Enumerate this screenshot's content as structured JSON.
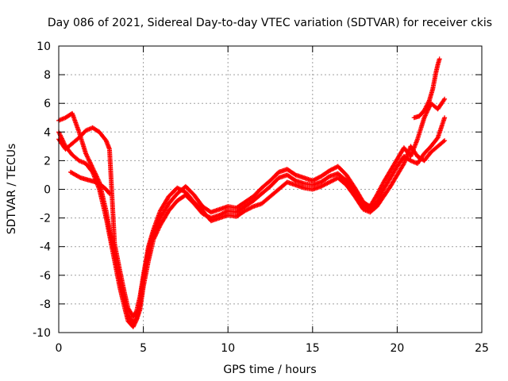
{
  "chart_data": {
    "type": "scatter",
    "title": "Day 086 of 2021, Sidereal Day-to-day VTEC variation (SDTVAR) for receiver ckis",
    "xlabel": "GPS time / hours",
    "ylabel": "SDTVAR / TECUs",
    "xlim": [
      0,
      25
    ],
    "ylim": [
      -10,
      10
    ],
    "xticks": [
      "0",
      "5",
      "10",
      "15",
      "20",
      "25"
    ],
    "yticks": [
      "-10",
      "-8",
      "-6",
      "-4",
      "-2",
      "0",
      "2",
      "4",
      "6",
      "8",
      "10"
    ],
    "grid": true,
    "marker": "plus",
    "color": "#ff0000",
    "series": [
      {
        "x": [
          0.0,
          0.4,
          0.8,
          1.2,
          1.6,
          2.0,
          2.4,
          2.8,
          3.0,
          3.3,
          3.6,
          3.9,
          4.1,
          4.4,
          4.6,
          4.8,
          5.0,
          5.3,
          5.6,
          6.0,
          6.5,
          7.0,
          7.5,
          8.0,
          8.5,
          9.0,
          9.5,
          10.0,
          10.5,
          11.0,
          11.5,
          12.0,
          12.5,
          13.0,
          13.5,
          14.0,
          14.5,
          15.0,
          15.5,
          16.0,
          16.5,
          17.0,
          17.5,
          18.0,
          18.4,
          18.8,
          19.2,
          19.6,
          20.0,
          20.4,
          20.8,
          21.2,
          21.6,
          22.0,
          22.4,
          22.8
        ],
        "y": [
          4.8,
          5.0,
          5.3,
          4.0,
          2.5,
          1.5,
          0.5,
          -1.5,
          -2.8,
          -4.5,
          -6.3,
          -7.8,
          -8.8,
          -9.3,
          -9.0,
          -8.0,
          -6.3,
          -4.3,
          -3.0,
          -2.0,
          -1.0,
          -0.3,
          0.2,
          -0.4,
          -1.2,
          -1.6,
          -1.4,
          -1.2,
          -1.3,
          -0.9,
          -0.5,
          0.1,
          0.6,
          1.2,
          1.4,
          1.0,
          0.8,
          0.6,
          0.9,
          1.3,
          1.6,
          1.0,
          0.1,
          -0.9,
          -1.2,
          -0.4,
          0.5,
          1.3,
          2.1,
          2.9,
          2.3,
          3.5,
          5.0,
          6.0,
          5.6,
          6.3
        ]
      },
      {
        "x": [
          0.0,
          0.4,
          0.8,
          1.2,
          1.6,
          2.0,
          2.4,
          2.8,
          3.0,
          3.3,
          3.6,
          3.9,
          4.1,
          4.4,
          4.6,
          4.8,
          5.0,
          5.3,
          5.6,
          6.0,
          6.5,
          7.0,
          7.5,
          8.0,
          8.5,
          9.0,
          9.5,
          10.0,
          10.5,
          11.0,
          11.5,
          12.0,
          12.5,
          13.0,
          13.5,
          14.0,
          14.5,
          15.0,
          15.5,
          16.0,
          16.5,
          17.0,
          17.5,
          18.0,
          18.4,
          18.8,
          19.2,
          19.6,
          20.0,
          20.4,
          20.8,
          21.2,
          21.6,
          22.0,
          22.4,
          22.8
        ],
        "y": [
          4.0,
          3.0,
          2.4,
          2.0,
          1.8,
          1.2,
          0.0,
          -2.0,
          -3.2,
          -5.0,
          -6.8,
          -8.3,
          -9.2,
          -9.6,
          -9.1,
          -8.4,
          -6.8,
          -5.0,
          -3.5,
          -2.5,
          -1.5,
          -0.8,
          -0.4,
          -1.0,
          -1.7,
          -2.0,
          -1.8,
          -1.5,
          -1.6,
          -1.2,
          -0.8,
          -0.3,
          0.2,
          0.8,
          1.0,
          0.6,
          0.4,
          0.3,
          0.5,
          0.9,
          1.1,
          0.6,
          -0.2,
          -1.1,
          -1.4,
          -0.9,
          0.0,
          0.8,
          1.6,
          2.3,
          2.0,
          1.8,
          2.5,
          3.0,
          3.6,
          5.0
        ]
      },
      {
        "x": [
          0.0,
          0.4,
          0.8,
          1.2,
          1.6,
          2.0,
          2.4,
          2.8,
          3.0,
          3.3,
          3.6,
          3.9,
          4.1,
          4.4,
          4.6,
          4.8,
          5.0,
          5.3,
          5.6,
          6.0,
          6.5,
          7.0,
          7.5,
          8.0,
          8.5,
          9.0,
          9.5,
          10.0,
          10.5,
          11.0,
          11.5,
          12.0,
          12.5,
          13.0,
          13.5,
          14.0,
          14.5,
          15.0,
          15.5,
          16.0,
          16.5,
          17.0,
          17.5,
          18.0,
          18.4,
          18.8,
          19.2,
          19.6,
          20.0,
          20.4,
          20.8,
          21.2,
          21.6,
          22.0,
          22.4,
          22.8
        ],
        "y": [
          3.5,
          2.8,
          3.2,
          3.6,
          4.1,
          4.3,
          4.0,
          3.4,
          2.8,
          -3.8,
          -5.6,
          -7.3,
          -8.3,
          -8.9,
          -8.5,
          -7.5,
          -6.0,
          -4.0,
          -2.8,
          -1.5,
          -0.5,
          0.1,
          -0.2,
          -0.9,
          -1.5,
          -2.2,
          -2.0,
          -1.8,
          -1.9,
          -1.5,
          -1.2,
          -1.0,
          -0.5,
          0.0,
          0.5,
          0.3,
          0.1,
          0.0,
          0.2,
          0.5,
          0.8,
          0.3,
          -0.5,
          -1.4,
          -1.6,
          -1.2,
          -0.5,
          0.2,
          1.0,
          1.8,
          3.0,
          2.3,
          2.0,
          2.6,
          3.0,
          3.4
        ]
      },
      {
        "x": [
          0.7,
          1.0,
          1.3,
          1.6,
          1.9,
          2.2,
          2.5,
          2.8,
          3.0
        ],
        "y": [
          1.2,
          1.0,
          0.8,
          0.7,
          0.6,
          0.5,
          0.3,
          0.0,
          -0.3
        ]
      },
      {
        "x": [
          21.0,
          21.3,
          21.6,
          21.9,
          22.1,
          22.2,
          22.3,
          22.4,
          22.5
        ],
        "y": [
          5.0,
          5.1,
          5.5,
          6.2,
          7.0,
          7.6,
          8.2,
          8.7,
          9.1
        ]
      }
    ]
  }
}
